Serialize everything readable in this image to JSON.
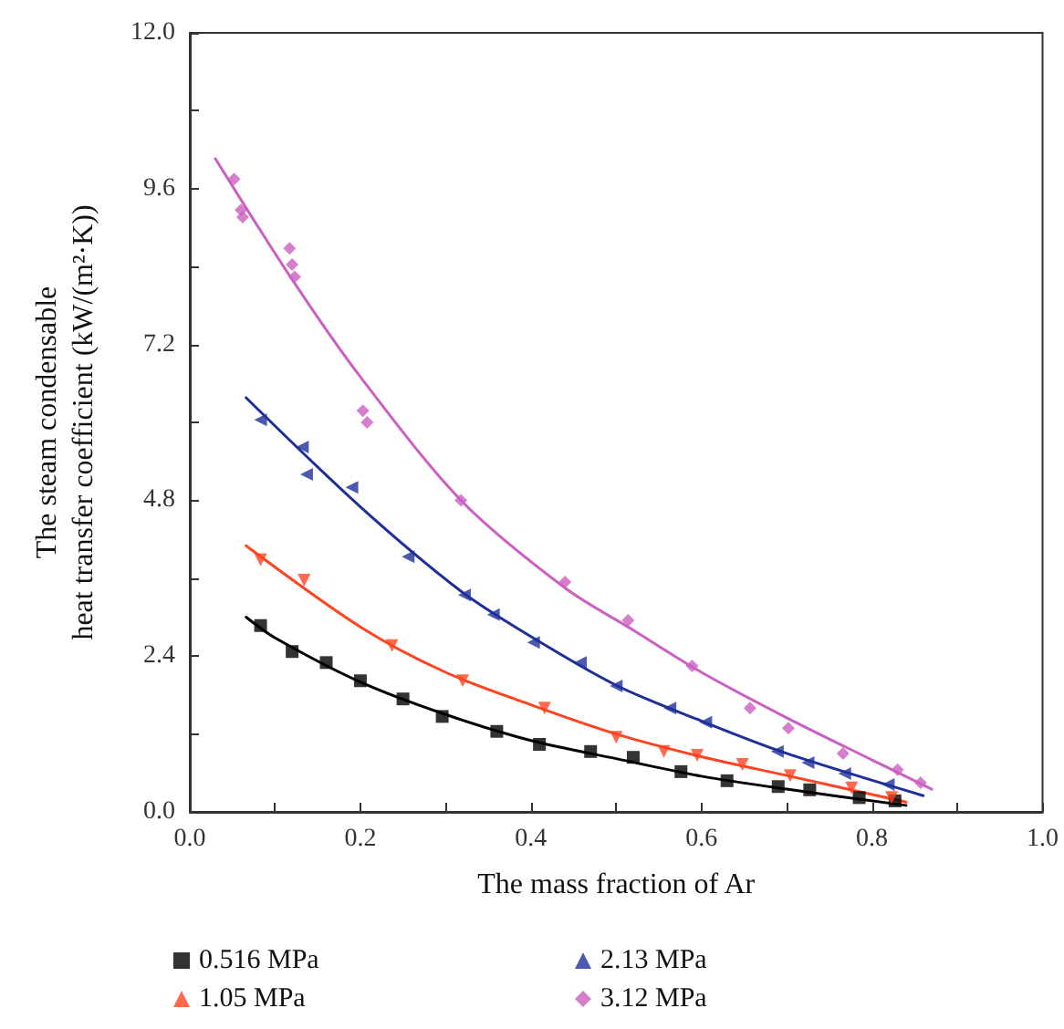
{
  "chart_data": {
    "type": "scatter",
    "xlabel": "The mass fraction of Ar",
    "ylabel": "The steam condensable\nheat transfer coefficient (kW/(m²·K))",
    "xlim": [
      0,
      1
    ],
    "ylim": [
      0,
      12
    ],
    "xticks": [
      {
        "value": 0,
        "label": "0.0"
      },
      {
        "value": 0.1,
        "label": null
      },
      {
        "value": 0.2,
        "label": "0.2"
      },
      {
        "value": 0.3,
        "label": null
      },
      {
        "value": 0.4,
        "label": "0.4"
      },
      {
        "value": 0.5,
        "label": null
      },
      {
        "value": 0.6,
        "label": "0.6"
      },
      {
        "value": 0.7,
        "label": null
      },
      {
        "value": 0.8,
        "label": "0.8"
      },
      {
        "value": 0.9,
        "label": null
      },
      {
        "value": 1,
        "label": "1.0"
      }
    ],
    "yticks": [
      {
        "value": 0,
        "label": "0.0"
      },
      {
        "value": 1.2,
        "label": null
      },
      {
        "value": 2.4,
        "label": "2.4"
      },
      {
        "value": 3.6,
        "label": null
      },
      {
        "value": 4.8,
        "label": "4.8"
      },
      {
        "value": 6,
        "label": null
      },
      {
        "value": 7.2,
        "label": "7.2"
      },
      {
        "value": 8.4,
        "label": null
      },
      {
        "value": 9.6,
        "label": "9.6"
      },
      {
        "value": 10.8,
        "label": null
      },
      {
        "value": 12,
        "label": "12.0"
      }
    ],
    "grid": false,
    "legend": "bottom",
    "series": [
      {
        "name": "0.516 MPa",
        "color": "#000000",
        "marker": "square",
        "x": [
          0.083,
          0.12,
          0.16,
          0.2,
          0.25,
          0.296,
          0.36,
          0.41,
          0.47,
          0.52,
          0.576,
          0.63,
          0.69,
          0.727,
          0.785,
          0.827
        ],
        "values": [
          2.87,
          2.47,
          2.3,
          2.02,
          1.74,
          1.47,
          1.24,
          1.04,
          0.93,
          0.84,
          0.62,
          0.48,
          0.39,
          0.34,
          0.22,
          0.17
        ]
      },
      {
        "name": "1.05 MPa",
        "color": "#ff4422",
        "marker": "triangle-down",
        "x": [
          0.083,
          0.134,
          0.237,
          0.32,
          0.416,
          0.5,
          0.556,
          0.595,
          0.648,
          0.704,
          0.776,
          0.823
        ],
        "values": [
          3.88,
          3.57,
          2.56,
          2.02,
          1.6,
          1.15,
          0.93,
          0.87,
          0.73,
          0.56,
          0.37,
          0.22
        ]
      },
      {
        "name": "2.13 MPa",
        "color": "#1f2f9a",
        "marker": "triangle-left",
        "x": [
          0.083,
          0.132,
          0.137,
          0.19,
          0.256,
          0.322,
          0.356,
          0.403,
          0.458,
          0.5,
          0.563,
          0.605,
          0.689,
          0.725,
          0.768,
          0.819
        ],
        "values": [
          6.04,
          5.62,
          5.2,
          5.0,
          3.93,
          3.34,
          3.04,
          2.61,
          2.3,
          1.94,
          1.6,
          1.38,
          0.93,
          0.76,
          0.59,
          0.42
        ]
      },
      {
        "name": "3.12 MPa",
        "color": "#cc5fc2",
        "marker": "diamond",
        "x": [
          0.052,
          0.06,
          0.062,
          0.117,
          0.12,
          0.123,
          0.203,
          0.208,
          0.318,
          0.44,
          0.514,
          0.589,
          0.657,
          0.702,
          0.766,
          0.83,
          0.857
        ],
        "values": [
          9.75,
          9.27,
          9.16,
          8.68,
          8.43,
          8.24,
          6.18,
          6.0,
          4.8,
          3.54,
          2.95,
          2.25,
          1.6,
          1.29,
          0.9,
          0.65,
          0.45
        ]
      },
      {
        "type": "line",
        "color": "#000000",
        "marker": "none",
        "x": [
          0.066,
          0.1,
          0.2,
          0.3,
          0.4,
          0.5,
          0.6,
          0.7,
          0.84
        ],
        "values": [
          3.0,
          2.68,
          2.0,
          1.5,
          1.1,
          0.82,
          0.55,
          0.35,
          0.1
        ]
      },
      {
        "type": "line",
        "color": "#ff4422",
        "marker": "none",
        "x": [
          0.066,
          0.2,
          0.3,
          0.4,
          0.5,
          0.6,
          0.7,
          0.84
        ],
        "values": [
          4.1,
          2.85,
          2.15,
          1.65,
          1.2,
          0.85,
          0.56,
          0.15
        ]
      },
      {
        "type": "line",
        "color": "#1f2f9a",
        "marker": "none",
        "x": [
          0.066,
          0.2,
          0.32,
          0.4,
          0.5,
          0.6,
          0.7,
          0.86
        ],
        "values": [
          6.38,
          4.7,
          3.38,
          2.7,
          1.95,
          1.4,
          0.9,
          0.25
        ]
      },
      {
        "type": "line",
        "color": "#cc5fc2",
        "marker": "none",
        "x": [
          0.03,
          0.12,
          0.2,
          0.318,
          0.44,
          0.52,
          0.6,
          0.7,
          0.8,
          0.87
        ],
        "values": [
          10.06,
          8.2,
          6.7,
          4.8,
          3.45,
          2.8,
          2.15,
          1.45,
          0.8,
          0.35
        ]
      }
    ]
  }
}
